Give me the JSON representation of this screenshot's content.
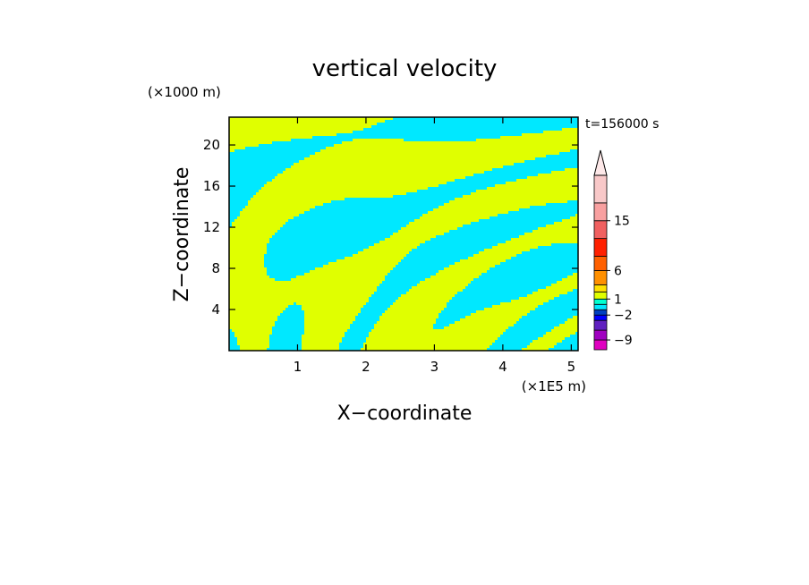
{
  "chart_data": {
    "type": "heatmap",
    "title": "vertical velocity",
    "xlabel": "X−coordinate",
    "ylabel": "Z−coordinate",
    "x_unit": "(×1E5 m)",
    "y_unit": "(×1000 m)",
    "time_label": "t=156000 s",
    "xlim": [
      0,
      5.1
    ],
    "ylim": [
      0,
      22.7
    ],
    "x_ticks": [
      1,
      2,
      3,
      4,
      5
    ],
    "y_ticks": [
      4,
      8,
      12,
      16,
      20
    ],
    "field_colors": {
      "positive": "#e0ff00",
      "negative": "#00e8ff"
    },
    "colorbar": {
      "labeled_values": [
        "15",
        "6",
        "1",
        "−2",
        "−9"
      ],
      "levels": [
        -12,
        -9,
        -6,
        -4,
        -2,
        -1,
        0,
        1,
        2,
        4,
        6,
        9,
        12,
        15,
        18,
        21
      ],
      "segment_colors": [
        "#e000c0",
        "#a000c0",
        "#6020c0",
        "#0000ff",
        "#0040c0",
        "#00e8ff",
        "#00ffd0",
        "#e0ff00",
        "#ffe000",
        "#ff9000",
        "#ff6000",
        "#ff2000",
        "#f06060",
        "#f8a0a0",
        "#f8c8c8"
      ],
      "extend": "max"
    }
  }
}
